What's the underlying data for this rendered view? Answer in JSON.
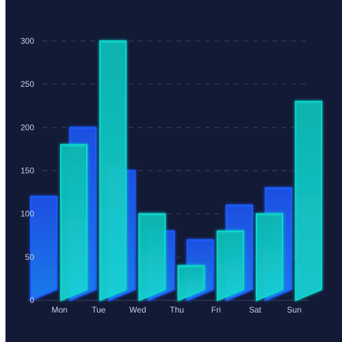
{
  "chart_data": {
    "type": "bar",
    "categories": [
      "Mon",
      "Tue",
      "Wed",
      "Thu",
      "Fri",
      "Sat",
      "Sun"
    ],
    "series": [
      {
        "values": [
          120,
          200,
          150,
          80,
          70,
          110,
          130
        ]
      },
      {
        "values": [
          180,
          300,
          100,
          40,
          80,
          100,
          230
        ]
      }
    ],
    "y_ticks": [
      "0",
      "50",
      "100",
      "150",
      "200",
      "250",
      "300"
    ],
    "ylim": [
      0,
      300
    ],
    "grid": "horizontal dashed",
    "colors": {
      "background": "#131a36",
      "series_1": "#1e5cff",
      "series_2": "#10d8cf",
      "grid": "#3a4260",
      "axis_text": "#c7cde0"
    }
  }
}
